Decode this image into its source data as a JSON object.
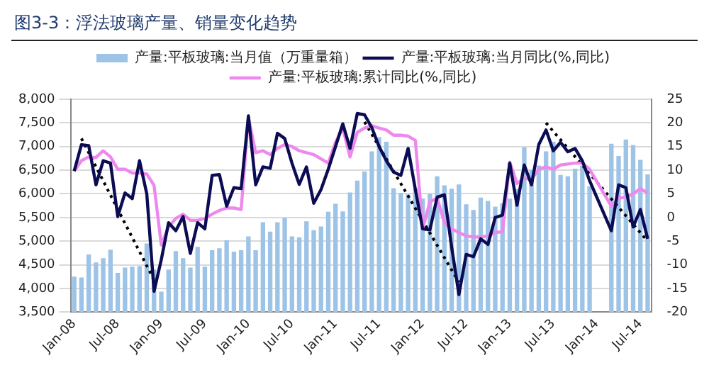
{
  "chart_data": {
    "type": "bar",
    "title": "图3-3：浮法玻璃产量、销量变化趋势",
    "categories": [
      "Jan-08",
      null,
      null,
      null,
      null,
      null,
      "Jul-08",
      null,
      null,
      null,
      null,
      null,
      "Jan-09",
      null,
      null,
      null,
      null,
      null,
      "Jul-09",
      null,
      null,
      null,
      null,
      null,
      "Jan-10",
      null,
      null,
      null,
      null,
      null,
      "Jul-10",
      null,
      null,
      null,
      null,
      null,
      "Jan-11",
      null,
      null,
      null,
      null,
      null,
      "Jul-11",
      null,
      null,
      null,
      null,
      null,
      "Jan-12",
      null,
      null,
      null,
      null,
      null,
      "Jul-12",
      null,
      null,
      null,
      null,
      null,
      "Jan-13",
      null,
      null,
      null,
      null,
      null,
      "Jul-13",
      null,
      null,
      null,
      null,
      null,
      "Jan-14",
      null,
      null,
      null,
      null,
      null,
      "Jul-14",
      null
    ],
    "series": [
      {
        "name": "产量:平板玻璃:当月值（万重量箱）",
        "color": "#9dc3e6",
        "values": [
          4250,
          4230,
          4720,
          4550,
          4640,
          4820,
          4330,
          4440,
          4460,
          4470,
          4950,
          4400,
          3930,
          4400,
          4790,
          4640,
          4440,
          4880,
          4460,
          4810,
          4850,
          5020,
          4780,
          4810,
          5100,
          4810,
          5400,
          5200,
          5400,
          5490,
          5100,
          5080,
          5420,
          5230,
          5310,
          5620,
          5790,
          5630,
          6030,
          6280,
          6470,
          6900,
          7200,
          7100,
          6120,
          6020,
          5990,
          6120,
          5900,
          6000,
          6370,
          6180,
          6110,
          6200,
          5780,
          5660,
          5920,
          5850,
          5730,
          5800,
          5900,
          6100,
          6980,
          6500,
          6600,
          6900,
          7100,
          6400,
          6370,
          6530,
          6600,
          6160,
          null,
          null,
          7060,
          6800,
          7150,
          7030,
          6720,
          6410
        ]
      },
      {
        "name": "产量:平板玻璃:当月同比(%,同比)",
        "type": "line",
        "axis": "y2",
        "color": "#0c0c54",
        "values": [
          9.8,
          15.4,
          15.2,
          6.9,
          12,
          11.5,
          0.2,
          5.2,
          4,
          12,
          5,
          -15.6,
          -8.9,
          -1.1,
          -2.8,
          0.2,
          -7.6,
          -1.1,
          -2.4,
          8.9,
          9.1,
          2.4,
          6.3,
          6.1,
          21.5,
          6.9,
          10.7,
          10.4,
          17.8,
          16.7,
          11.5,
          7,
          10.7,
          3,
          5.9,
          10.2,
          15,
          19.8,
          14.6,
          22,
          21.7,
          19,
          15,
          12,
          9.6,
          8.9,
          14.6,
          5.9,
          -2.4,
          -2.6,
          4.3,
          4.8,
          -6.3,
          -16.3,
          -7.8,
          -8.3,
          -4.5,
          -5.7,
          0,
          0.5,
          11.5,
          2.6,
          11.1,
          6.9,
          15.4,
          18.5,
          14.1,
          15.9,
          13.9,
          14.6,
          12,
          7.8,
          null,
          null,
          -2.8,
          6.9,
          6.3,
          -2,
          1.7,
          -4.5
        ]
      },
      {
        "name": "产量:平板玻璃:累计同比(%,同比)",
        "type": "line",
        "axis": "y2",
        "color": "#ee88ee",
        "values": [
          9.8,
          12,
          12.8,
          12.7,
          14.1,
          12.8,
          10.2,
          10.2,
          9.4,
          9.4,
          9.2,
          6.8,
          -5.8,
          -2,
          -0.2,
          0.7,
          -0.6,
          -0.6,
          -0.2,
          0.7,
          1.5,
          2,
          2,
          1.7,
          21.1,
          13.7,
          14.1,
          13.3,
          14.6,
          15.4,
          15,
          14.1,
          13.7,
          13.3,
          12.4,
          11.5,
          15.9,
          18.9,
          12.8,
          18,
          18.9,
          19.4,
          18.9,
          18.5,
          17.4,
          17.4,
          17.2,
          16.3,
          -2.4,
          3.3,
          4.1,
          -1.1,
          -2.4,
          -3.2,
          -3.9,
          -4.1,
          -4.1,
          -3.9,
          -3.2,
          -3,
          11.7,
          7.2,
          8.3,
          8.1,
          10.2,
          10.7,
          10.2,
          11.1,
          11.3,
          11.5,
          11.5,
          10.2,
          null,
          null,
          2.4,
          4.1,
          4.3,
          5,
          6.1,
          5.2
        ]
      },
      {
        "type": "line",
        "axis": "y2",
        "color": "#000000",
        "line_style": "dotted",
        "values": [
          null,
          16.7,
          null,
          null,
          null,
          null,
          null,
          null,
          null,
          null,
          null,
          -13.2,
          null,
          null,
          null,
          null,
          null,
          null,
          null,
          null,
          null,
          null,
          null,
          null,
          null,
          null,
          null,
          null,
          null,
          null,
          null,
          null,
          null,
          null,
          null,
          null,
          null,
          null,
          null,
          null,
          null,
          null,
          null,
          null,
          null,
          null,
          null,
          null,
          null,
          null,
          null,
          null,
          null,
          null,
          null,
          null,
          null,
          null,
          null,
          null,
          null,
          null,
          null,
          null,
          null,
          null,
          null,
          null,
          null,
          null,
          null,
          null,
          null,
          null,
          null,
          null,
          null,
          null,
          null,
          null
        ]
      },
      {
        "type": "line",
        "axis": "y2",
        "color": "#000000",
        "line_style": "dotted",
        "values": [
          null,
          null,
          null,
          null,
          null,
          null,
          null,
          null,
          null,
          null,
          null,
          null,
          null,
          null,
          null,
          null,
          null,
          null,
          null,
          null,
          null,
          null,
          null,
          null,
          null,
          null,
          null,
          null,
          null,
          null,
          null,
          null,
          null,
          null,
          null,
          null,
          null,
          null,
          null,
          null,
          20.2,
          null,
          null,
          null,
          null,
          null,
          null,
          null,
          null,
          null,
          null,
          null,
          null,
          -13.7,
          null,
          null,
          null,
          null,
          null,
          null,
          null,
          null,
          null,
          null,
          null,
          null,
          null,
          null,
          null,
          null,
          null,
          null,
          null,
          null,
          null,
          null,
          null,
          null,
          null,
          null
        ]
      },
      {
        "type": "line",
        "axis": "y2",
        "color": "#000000",
        "line_style": "dotted",
        "values": [
          null,
          null,
          null,
          null,
          null,
          null,
          null,
          null,
          null,
          null,
          null,
          null,
          null,
          null,
          null,
          null,
          null,
          null,
          null,
          null,
          null,
          null,
          null,
          null,
          null,
          null,
          null,
          null,
          null,
          null,
          null,
          null,
          null,
          null,
          null,
          null,
          null,
          null,
          null,
          null,
          null,
          null,
          null,
          null,
          null,
          null,
          null,
          null,
          null,
          null,
          null,
          null,
          null,
          null,
          null,
          null,
          null,
          null,
          null,
          null,
          null,
          null,
          null,
          null,
          null,
          20,
          null,
          null,
          null,
          null,
          null,
          null,
          null,
          null,
          null,
          null,
          null,
          null,
          null,
          -5
        ]
      }
    ],
    "ylim": [
      3500,
      8000
    ],
    "yticks": [
      {
        "value": 3500,
        "label": "3,500"
      },
      {
        "value": 4000,
        "label": "4,000"
      },
      {
        "value": 4500,
        "label": "4,500"
      },
      {
        "value": 5000,
        "label": "5,000"
      },
      {
        "value": 5500,
        "label": "5,500"
      },
      {
        "value": 6000,
        "label": "6,000"
      },
      {
        "value": 6500,
        "label": "6,500"
      },
      {
        "value": 7000,
        "label": "7,000"
      },
      {
        "value": 7500,
        "label": "7,500"
      },
      {
        "value": 8000,
        "label": "8,000"
      }
    ],
    "y2lim": [
      -20,
      25
    ],
    "y2ticks": [
      -20,
      -15,
      -10,
      -5,
      0,
      5,
      10,
      15,
      20,
      25
    ],
    "grid": "y",
    "legend": "top"
  }
}
